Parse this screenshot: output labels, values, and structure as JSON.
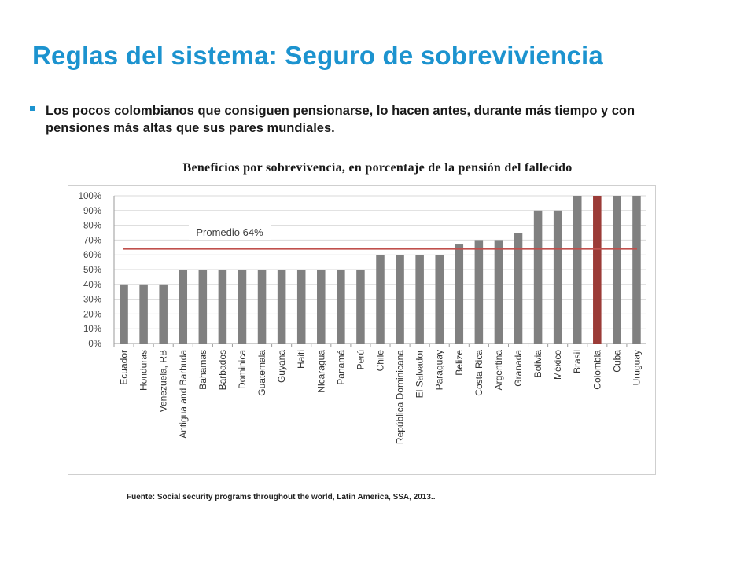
{
  "title": "Reglas del sistema: Seguro de sobreviviencia",
  "bullet": "Los pocos colombianos que consiguen pensionarse, lo hacen antes, durante más tiempo y con pensiones más altas que sus pares mundiales.",
  "footnote": "Fuente: Social security programs throughout the world, Latin America, SSA, 2013..",
  "colors": {
    "title": "#1c93cf",
    "bar": "#808080",
    "highlight_bar": "#9b3b37",
    "average_line": "#c0504d",
    "average_label_box": "#ffffff"
  },
  "chart_data": {
    "type": "bar",
    "title": "Beneficios por sobrevivencia, en porcentaje de la pensión del fallecido",
    "xlabel": "",
    "ylabel": "",
    "categories": [
      "Ecuador",
      "Honduras",
      "Venezuela, RB",
      "Antigua and Barbuda",
      "Bahamas",
      "Barbados",
      "Dominica",
      "Guatemala",
      "Guyana",
      "Haiti",
      "Nicaragua",
      "Panamá",
      "Perú",
      "Chile",
      "República Dominicana",
      "El Salvador",
      "Paraguay",
      "Belize",
      "Costa Rica",
      "Argentina",
      "Granada",
      "Bolivia",
      "México",
      "Brasil",
      "Colombia",
      "Cuba",
      "Uruguay"
    ],
    "values": [
      40,
      40,
      40,
      50,
      50,
      50,
      50,
      50,
      50,
      50,
      50,
      50,
      50,
      60,
      60,
      60,
      60,
      67,
      70,
      70,
      75,
      90,
      90,
      100,
      100,
      100,
      100
    ],
    "highlight": "Colombia",
    "ylim": [
      0,
      100
    ],
    "yticks": [
      "0%",
      "10%",
      "20%",
      "30%",
      "40%",
      "50%",
      "60%",
      "70%",
      "80%",
      "90%",
      "100%"
    ],
    "grid": true,
    "average": {
      "value": 64,
      "label": "Promedio 64%"
    }
  }
}
